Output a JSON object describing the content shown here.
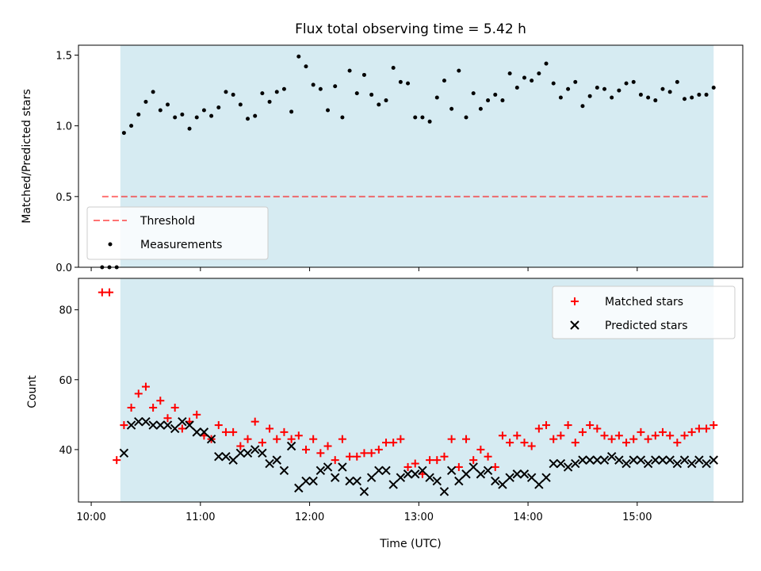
{
  "chart_data": [
    {
      "type": "scatter",
      "title": "Flux total observing time = 5.42 h",
      "xlabel": "",
      "ylabel": "Matched/Predicted stars",
      "xlim": [
        "09:53",
        "15:58"
      ],
      "ylim": [
        0,
        1.57
      ],
      "x_ticks": [
        "10:00",
        "11:00",
        "12:00",
        "13:00",
        "14:00",
        "15:00"
      ],
      "y_ticks": [
        "0.0",
        "0.5",
        "1.0",
        "1.5"
      ],
      "shaded_region": {
        "from": "10:16",
        "to": "15:42",
        "color": "#add8e6"
      },
      "threshold": {
        "name": "Threshold",
        "value": 0.5,
        "from": "10:06",
        "to": "15:40",
        "color": "#ff0000"
      },
      "legend": {
        "placement": "lower-left",
        "entries": [
          "Threshold",
          "Measurements"
        ]
      },
      "series": [
        {
          "name": "Measurements",
          "marker": "dot",
          "color": "#000000",
          "x": [
            "10:06",
            "10:10",
            "10:14",
            "10:18",
            "10:22",
            "10:26",
            "10:30",
            "10:34",
            "10:38",
            "10:42",
            "10:46",
            "10:50",
            "10:54",
            "10:58",
            "11:02",
            "11:06",
            "11:10",
            "11:14",
            "11:18",
            "11:22",
            "11:26",
            "11:30",
            "11:34",
            "11:38",
            "11:42",
            "11:46",
            "11:50",
            "11:54",
            "11:58",
            "12:02",
            "12:06",
            "12:10",
            "12:14",
            "12:18",
            "12:22",
            "12:26",
            "12:30",
            "12:34",
            "12:38",
            "12:42",
            "12:46",
            "12:50",
            "12:54",
            "12:58",
            "13:02",
            "13:06",
            "13:10",
            "13:14",
            "13:18",
            "13:22",
            "13:26",
            "13:30",
            "13:34",
            "13:38",
            "13:42",
            "13:46",
            "13:50",
            "13:54",
            "13:58",
            "14:02",
            "14:06",
            "14:10",
            "14:14",
            "14:18",
            "14:22",
            "14:26",
            "14:30",
            "14:34",
            "14:38",
            "14:42",
            "14:46",
            "14:50",
            "14:54",
            "14:58",
            "15:02",
            "15:06",
            "15:10",
            "15:14",
            "15:18",
            "15:22",
            "15:26",
            "15:30",
            "15:34",
            "15:38",
            "15:42"
          ],
          "y": [
            0,
            0,
            0,
            0.95,
            1.0,
            1.08,
            1.17,
            1.24,
            1.11,
            1.15,
            1.06,
            1.08,
            0.98,
            1.06,
            1.11,
            1.07,
            1.13,
            1.24,
            1.22,
            1.15,
            1.05,
            1.07,
            1.23,
            1.17,
            1.24,
            1.26,
            1.1,
            1.49,
            1.42,
            1.29,
            1.26,
            1.11,
            1.28,
            1.06,
            1.39,
            1.23,
            1.36,
            1.22,
            1.15,
            1.18,
            1.41,
            1.31,
            1.3,
            1.06,
            1.06,
            1.03,
            1.2,
            1.32,
            1.12,
            1.39,
            1.06,
            1.23,
            1.12,
            1.18,
            1.22,
            1.18,
            1.37,
            1.27,
            1.34,
            1.32,
            1.37,
            1.44,
            1.3,
            1.2,
            1.26,
            1.31,
            1.14,
            1.21,
            1.27,
            1.26,
            1.2,
            1.25,
            1.3,
            1.31,
            1.22,
            1.2,
            1.18,
            1.26,
            1.24,
            1.31,
            1.19,
            1.2,
            1.22,
            1.22,
            1.27
          ]
        }
      ]
    },
    {
      "type": "scatter",
      "title": "",
      "xlabel": "Time (UTC)",
      "ylabel": "Count",
      "xlim": [
        "09:53",
        "15:58"
      ],
      "ylim": [
        25,
        89
      ],
      "x_ticks": [
        "10:00",
        "11:00",
        "12:00",
        "13:00",
        "14:00",
        "15:00"
      ],
      "y_ticks": [
        "40",
        "60",
        "80"
      ],
      "shaded_region": {
        "from": "10:16",
        "to": "15:42",
        "color": "#add8e6"
      },
      "legend": {
        "placement": "top-right",
        "entries": [
          "Matched stars",
          "Predicted stars"
        ]
      },
      "series": [
        {
          "name": "Matched stars",
          "marker": "plus",
          "color": "#ff0000",
          "x": [
            "10:06",
            "10:10",
            "10:14",
            "10:18",
            "10:22",
            "10:26",
            "10:30",
            "10:34",
            "10:38",
            "10:42",
            "10:46",
            "10:50",
            "10:54",
            "10:58",
            "11:02",
            "11:06",
            "11:10",
            "11:14",
            "11:18",
            "11:22",
            "11:26",
            "11:30",
            "11:34",
            "11:38",
            "11:42",
            "11:46",
            "11:50",
            "11:54",
            "11:58",
            "12:02",
            "12:06",
            "12:10",
            "12:14",
            "12:18",
            "12:22",
            "12:26",
            "12:30",
            "12:34",
            "12:38",
            "12:42",
            "12:46",
            "12:50",
            "12:54",
            "12:58",
            "13:02",
            "13:06",
            "13:10",
            "13:14",
            "13:18",
            "13:22",
            "13:26",
            "13:30",
            "13:34",
            "13:38",
            "13:42",
            "13:46",
            "13:50",
            "13:54",
            "13:58",
            "14:02",
            "14:06",
            "14:10",
            "14:14",
            "14:18",
            "14:22",
            "14:26",
            "14:30",
            "14:34",
            "14:38",
            "14:42",
            "14:46",
            "14:50",
            "14:54",
            "14:58",
            "15:02",
            "15:06",
            "15:10",
            "15:14",
            "15:18",
            "15:22",
            "15:26",
            "15:30",
            "15:34",
            "15:38",
            "15:42"
          ],
          "y": [
            85,
            85,
            37,
            47,
            52,
            56,
            58,
            52,
            54,
            49,
            52,
            46,
            48,
            50,
            44,
            43,
            47,
            45,
            45,
            41,
            43,
            48,
            42,
            46,
            43,
            45,
            43,
            44,
            40,
            43,
            39,
            41,
            37,
            43,
            38,
            38,
            39,
            39,
            40,
            42,
            42,
            43,
            35,
            36,
            33,
            37,
            37,
            38,
            43,
            35,
            43,
            37,
            40,
            38,
            35,
            44,
            42,
            44,
            42,
            41,
            46,
            47,
            43,
            44,
            47,
            42,
            45,
            47,
            46,
            44,
            43,
            44,
            42,
            43,
            45,
            43,
            44,
            45,
            44,
            42,
            44,
            45,
            46,
            46,
            47
          ]
        },
        {
          "name": "Predicted stars",
          "marker": "x",
          "color": "#000000",
          "x": [
            "10:18",
            "10:22",
            "10:26",
            "10:30",
            "10:34",
            "10:38",
            "10:42",
            "10:46",
            "10:50",
            "10:54",
            "10:58",
            "11:02",
            "11:06",
            "11:10",
            "11:14",
            "11:18",
            "11:22",
            "11:26",
            "11:30",
            "11:34",
            "11:38",
            "11:42",
            "11:46",
            "11:50",
            "11:54",
            "11:58",
            "12:02",
            "12:06",
            "12:10",
            "12:14",
            "12:18",
            "12:22",
            "12:26",
            "12:30",
            "12:34",
            "12:38",
            "12:42",
            "12:46",
            "12:50",
            "12:54",
            "12:58",
            "13:02",
            "13:06",
            "13:10",
            "13:14",
            "13:18",
            "13:22",
            "13:26",
            "13:30",
            "13:34",
            "13:38",
            "13:42",
            "13:46",
            "13:50",
            "13:54",
            "13:58",
            "14:02",
            "14:06",
            "14:10",
            "14:14",
            "14:18",
            "14:22",
            "14:26",
            "14:30",
            "14:34",
            "14:38",
            "14:42",
            "14:46",
            "14:50",
            "14:54",
            "14:58",
            "15:02",
            "15:06",
            "15:10",
            "15:14",
            "15:18",
            "15:22",
            "15:26",
            "15:30",
            "15:34",
            "15:38",
            "15:42"
          ],
          "y": [
            39,
            47,
            48,
            48,
            47,
            47,
            47,
            46,
            48,
            47,
            45,
            45,
            43,
            38,
            38,
            37,
            39,
            39,
            40,
            39,
            36,
            37,
            34,
            41,
            29,
            31,
            31,
            34,
            35,
            32,
            35,
            31,
            31,
            28,
            32,
            34,
            34,
            30,
            32,
            33,
            33,
            34,
            32,
            31,
            28,
            34,
            31,
            33,
            35,
            33,
            34,
            31,
            30,
            32,
            33,
            33,
            32,
            30,
            32,
            36,
            36,
            35,
            36,
            37,
            37,
            37,
            37,
            38,
            37,
            36,
            37,
            37,
            36,
            37,
            37,
            37,
            36,
            37,
            36,
            37,
            36,
            37
          ]
        }
      ]
    }
  ]
}
